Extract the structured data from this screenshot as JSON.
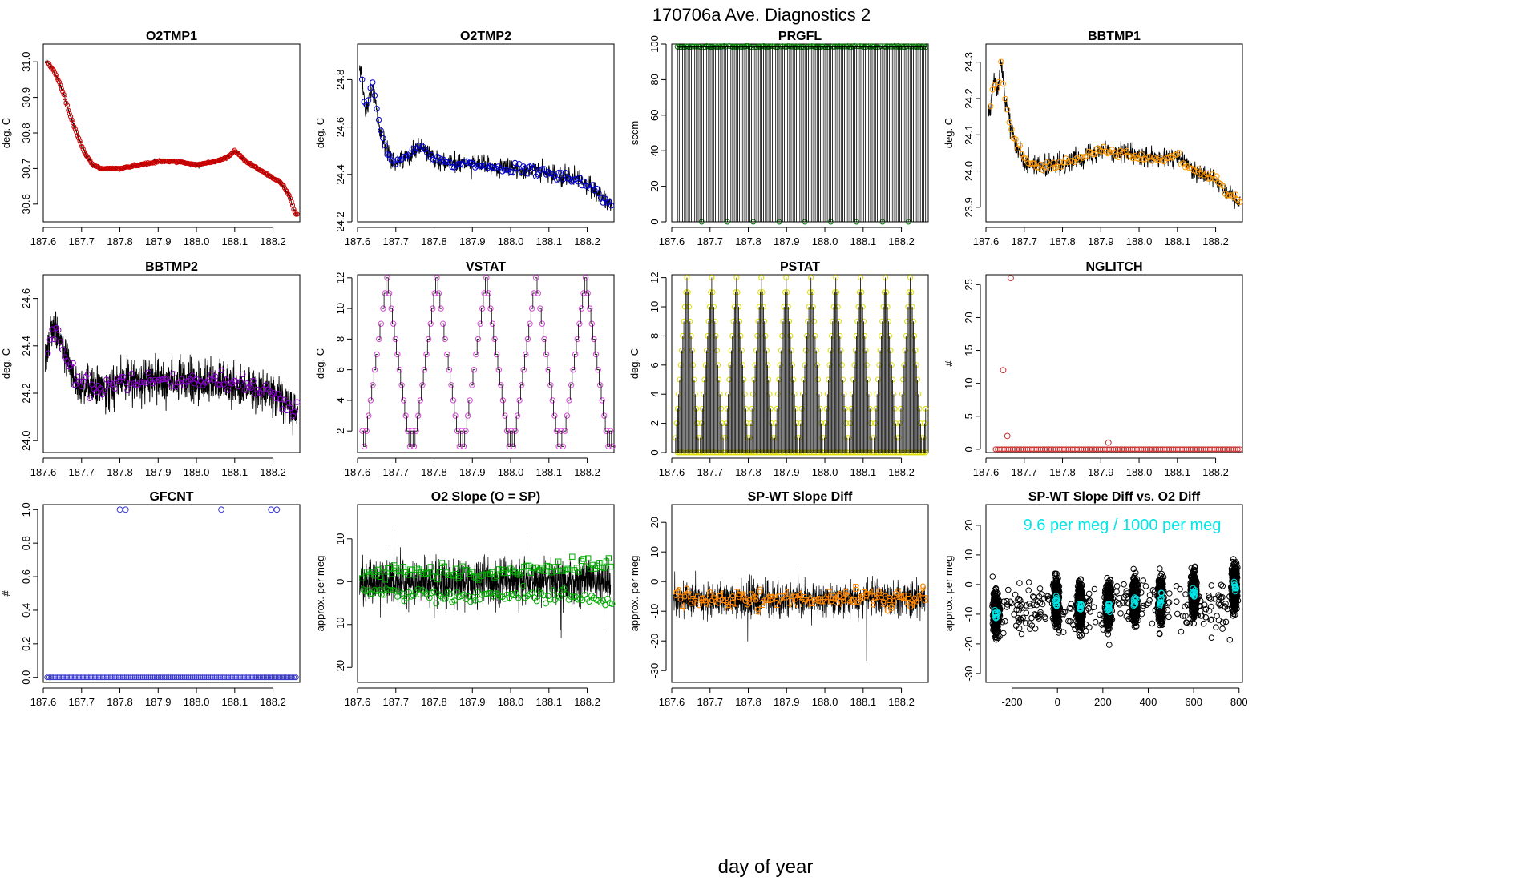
{
  "figure": {
    "title": "170706a   Ave. Diagnostics 2",
    "xlabel": "day of year"
  },
  "chart_data": [
    {
      "id": "o2tmp1",
      "type": "line",
      "title": "O2TMP1",
      "ylabel": "deg. C",
      "xlim": [
        187.6,
        188.27
      ],
      "ylim": [
        30.55,
        31.05
      ],
      "xticks": [
        "187.6",
        "187.7",
        "187.8",
        "187.9",
        "188.0",
        "188.1",
        "188.2"
      ],
      "yticks": [
        "30.6",
        "30.7",
        "30.8",
        "30.9",
        "31.0"
      ],
      "point_color": "#cc0000",
      "marker": "circle",
      "series": [
        {
          "name": "O2TMP1",
          "x": [
            187.61,
            187.63,
            187.65,
            187.67,
            187.69,
            187.71,
            187.73,
            187.75,
            187.78,
            187.8,
            187.85,
            187.9,
            187.95,
            188.0,
            188.05,
            188.08,
            188.1,
            188.13,
            188.16,
            188.19,
            188.22,
            188.24,
            188.26
          ],
          "y": [
            31.0,
            30.97,
            30.92,
            30.85,
            30.79,
            30.74,
            30.71,
            30.7,
            30.7,
            30.7,
            30.71,
            30.72,
            30.72,
            30.71,
            30.72,
            30.73,
            30.75,
            30.72,
            30.7,
            30.68,
            30.66,
            30.63,
            30.57
          ]
        }
      ]
    },
    {
      "id": "o2tmp2",
      "type": "line",
      "title": "O2TMP2",
      "ylabel": "deg. C",
      "xlim": [
        187.6,
        188.27
      ],
      "ylim": [
        24.2,
        24.95
      ],
      "xticks": [
        "187.6",
        "187.7",
        "187.8",
        "187.9",
        "188.0",
        "188.1",
        "188.2"
      ],
      "yticks": [
        "24.2",
        "24.4",
        "24.6",
        "24.8"
      ],
      "point_color": "#0000cc",
      "marker": "circle",
      "series": [
        {
          "name": "O2TMP2",
          "x": [
            187.61,
            187.62,
            187.63,
            187.64,
            187.66,
            187.68,
            187.7,
            187.73,
            187.76,
            187.78,
            187.8,
            187.85,
            187.9,
            187.95,
            188.0,
            188.05,
            188.1,
            188.15,
            188.2,
            188.23,
            188.26
          ],
          "y": [
            24.84,
            24.66,
            24.73,
            24.77,
            24.58,
            24.48,
            24.45,
            24.48,
            24.52,
            24.5,
            24.47,
            24.44,
            24.45,
            24.43,
            24.42,
            24.42,
            24.4,
            24.39,
            24.36,
            24.32,
            24.27
          ]
        }
      ]
    },
    {
      "id": "prgfl",
      "type": "scatter",
      "title": "PRGFL",
      "ylabel": "sccm",
      "xlim": [
        187.6,
        188.27
      ],
      "ylim": [
        0,
        100
      ],
      "xticks": [
        "187.6",
        "187.7",
        "187.8",
        "187.9",
        "188.0",
        "188.1",
        "188.2"
      ],
      "yticks": [
        "0",
        "20",
        "40",
        "60",
        "80",
        "100"
      ],
      "point_color": "#007700",
      "marker": "circle",
      "pattern": {
        "high_value": 98.5,
        "low_value": 0,
        "low_every_days": 0.0645,
        "spike_every": 6
      }
    },
    {
      "id": "bbtmp1",
      "type": "line",
      "title": "BBTMP1",
      "ylabel": "deg. C",
      "xlim": [
        187.6,
        188.27
      ],
      "ylim": [
        23.86,
        24.35
      ],
      "xticks": [
        "187.6",
        "187.7",
        "187.8",
        "187.9",
        "188.0",
        "188.1",
        "188.2"
      ],
      "yticks": [
        "23.9",
        "24.0",
        "24.1",
        "24.2",
        "24.3"
      ],
      "point_color": "#ff9900",
      "marker": "circle",
      "series": [
        {
          "name": "BBTMP1",
          "x": [
            187.61,
            187.62,
            187.63,
            187.64,
            187.65,
            187.67,
            187.7,
            187.75,
            187.8,
            187.85,
            187.9,
            187.95,
            188.0,
            188.05,
            188.1,
            188.15,
            188.2,
            188.23,
            188.26
          ],
          "y": [
            24.16,
            24.25,
            24.22,
            24.3,
            24.2,
            24.1,
            24.03,
            24.01,
            24.02,
            24.04,
            24.06,
            24.05,
            24.04,
            24.03,
            24.04,
            24.0,
            23.98,
            23.94,
            23.92
          ]
        }
      ]
    },
    {
      "id": "bbtmp2",
      "type": "line",
      "title": "BBTMP2",
      "ylabel": "deg. C",
      "xlim": [
        187.6,
        188.27
      ],
      "ylim": [
        23.95,
        24.7
      ],
      "xticks": [
        "187.6",
        "187.7",
        "187.8",
        "187.9",
        "188.0",
        "188.1",
        "188.2"
      ],
      "yticks": [
        "24.0",
        "24.2",
        "24.4",
        "24.6"
      ],
      "point_color": "#8800cc",
      "marker": "circle",
      "series": [
        {
          "name": "BBTMP2",
          "x": [
            187.61,
            187.62,
            187.63,
            187.64,
            187.66,
            187.68,
            187.7,
            187.75,
            187.8,
            187.85,
            187.9,
            187.95,
            188.0,
            188.05,
            188.1,
            188.15,
            188.2,
            188.24,
            188.26
          ],
          "y": [
            24.37,
            24.45,
            24.46,
            24.44,
            24.35,
            24.27,
            24.23,
            24.22,
            24.25,
            24.25,
            24.26,
            24.25,
            24.24,
            24.25,
            24.24,
            24.22,
            24.2,
            24.15,
            24.11
          ]
        }
      ]
    },
    {
      "id": "vstat",
      "type": "line",
      "title": "VSTAT",
      "ylabel": "deg. C",
      "xlim": [
        187.6,
        188.27
      ],
      "ylim": [
        0.6,
        12.2
      ],
      "xticks": [
        "187.6",
        "187.7",
        "187.8",
        "187.9",
        "188.0",
        "188.1",
        "188.2"
      ],
      "yticks": [
        "2",
        "4",
        "6",
        "8",
        "10",
        "12"
      ],
      "point_color": "#dd44dd",
      "marker": "circle",
      "pattern": {
        "start_day": 187.61,
        "step_days": 0.0054,
        "cycle": [
          2,
          1,
          2,
          3,
          4,
          5,
          6,
          7,
          8,
          9,
          10,
          11,
          12,
          11,
          10,
          9,
          8,
          7,
          6,
          5,
          4,
          3,
          2,
          1
        ]
      }
    },
    {
      "id": "pstat",
      "type": "line",
      "title": "PSTAT",
      "ylabel": "deg. C",
      "xlim": [
        187.6,
        188.27
      ],
      "ylim": [
        0,
        12.2
      ],
      "xticks": [
        "187.6",
        "187.7",
        "187.8",
        "187.9",
        "188.0",
        "188.1",
        "188.2"
      ],
      "yticks": [
        "0",
        "2",
        "4",
        "6",
        "8",
        "10",
        "12"
      ],
      "point_color": "#dddd00",
      "marker": "circle",
      "pattern": {
        "start_day": 187.61,
        "step_days": 0.0027,
        "cycle": [
          1,
          2,
          3,
          4,
          5,
          6,
          7,
          8,
          9,
          10,
          11,
          12,
          11,
          10,
          9,
          8,
          7,
          6,
          5,
          4,
          3,
          2,
          1,
          0
        ],
        "zero_every": 2
      }
    },
    {
      "id": "nglitch",
      "type": "scatter",
      "title": "NGLITCH",
      "ylabel": "#",
      "xlim": [
        187.6,
        188.27
      ],
      "ylim": [
        -0.5,
        26.5
      ],
      "xticks": [
        "187.6",
        "187.7",
        "187.8",
        "187.9",
        "188.0",
        "188.1",
        "188.2"
      ],
      "yticks": [
        "0",
        "5",
        "10",
        "15",
        "20",
        "25"
      ],
      "point_color": "#cc3333",
      "marker": "circle",
      "series": [
        {
          "name": "NGLITCH",
          "x": [
            187.645,
            187.656,
            187.665,
            187.92
          ],
          "y": [
            12,
            2,
            26,
            1
          ]
        }
      ],
      "baseline": {
        "value": 0,
        "start": 187.625,
        "end": 188.265,
        "step": 0.0056
      }
    },
    {
      "id": "gfcnt",
      "type": "scatter",
      "title": "GFCNT",
      "ylabel": "#",
      "xlim": [
        187.6,
        188.27
      ],
      "ylim": [
        -0.03,
        1.03
      ],
      "xticks": [
        "187.6",
        "187.7",
        "187.8",
        "187.9",
        "188.0",
        "188.1",
        "188.2"
      ],
      "yticks": [
        "0.0",
        "0.2",
        "0.4",
        "0.6",
        "0.8",
        "1.0"
      ],
      "point_color": "#3333cc",
      "marker": "circle",
      "series": [
        {
          "name": "GFCNT",
          "x": [
            187.8,
            187.815,
            188.065,
            188.195,
            188.21
          ],
          "y": [
            1,
            1,
            1,
            1,
            1
          ]
        }
      ],
      "baseline": {
        "value": 0,
        "start": 187.61,
        "end": 188.265,
        "step": 0.0052
      }
    },
    {
      "id": "o2slope",
      "type": "scatter",
      "title": "O2 Slope (O = SP)",
      "ylabel": "approx. per meg",
      "xlim": [
        187.6,
        188.27
      ],
      "ylim": [
        -23.5,
        18
      ],
      "xticks": [
        "187.6",
        "187.7",
        "187.8",
        "187.9",
        "188.0",
        "188.1",
        "188.2"
      ],
      "yticks": [
        "-20",
        "-10",
        "0",
        "10"
      ],
      "point_color": "#00aa00",
      "series": [
        {
          "name": "SP (squares)",
          "marker": "square",
          "x": [
            187.61,
            187.7,
            187.8,
            187.9,
            188.0,
            188.1,
            188.2,
            188.26
          ],
          "y": [
            2,
            2.5,
            2.5,
            2,
            2.5,
            3,
            4,
            4.5
          ]
        },
        {
          "name": "O (circles)",
          "marker": "circle",
          "x": [
            187.61,
            187.7,
            187.8,
            187.9,
            188.0,
            188.1,
            188.2,
            188.26
          ],
          "y": [
            -1.5,
            -3,
            -3,
            -3.5,
            -3,
            -3.5,
            -4,
            -4.5
          ]
        }
      ]
    },
    {
      "id": "spwtdiff",
      "type": "scatter",
      "title": "SP-WT Slope Diff",
      "ylabel": "approx. per meg",
      "xlim": [
        187.6,
        188.27
      ],
      "ylim": [
        -34,
        26
      ],
      "xticks": [
        "187.6",
        "187.7",
        "187.8",
        "187.9",
        "188.0",
        "188.1",
        "188.2"
      ],
      "yticks": [
        "-30",
        "-20",
        "-10",
        "0",
        "10",
        "20"
      ],
      "point_color": "#ff8800",
      "marker": "label",
      "series": [
        {
          "name": "SP-WT",
          "x": [
            187.61,
            187.7,
            187.8,
            187.9,
            188.0,
            188.1,
            188.2,
            188.26
          ],
          "y": [
            -5,
            -6,
            -5.5,
            -6,
            -6,
            -5.5,
            -6.5,
            -6
          ]
        }
      ],
      "labels": [
        "2",
        "3",
        "7",
        "8",
        "1",
        "4",
        "5",
        "6",
        "9",
        "B",
        "A"
      ]
    },
    {
      "id": "spwtvso2",
      "type": "scatter",
      "title": "SP-WT Slope Diff vs. O2 Diff",
      "ylabel": "approx. per meg",
      "annotation": "9.6 per meg / 1000 per meg",
      "xlim": [
        -315,
        815
      ],
      "ylim": [
        -33,
        27
      ],
      "xticks": [
        "-200",
        "0",
        "200",
        "400",
        "600",
        "800"
      ],
      "yticks": [
        "-30",
        "-20",
        "-10",
        "0",
        "10",
        "20"
      ],
      "point_color": "#000000",
      "highlight_color": "#00e5e5",
      "marker": "circle",
      "clusters": [
        {
          "x": -270,
          "y": -10
        },
        {
          "x": -5,
          "y": -6
        },
        {
          "x": 100,
          "y": -7
        },
        {
          "x": 225,
          "y": -7
        },
        {
          "x": 340,
          "y": -5
        },
        {
          "x": 455,
          "y": -5
        },
        {
          "x": 600,
          "y": -3
        },
        {
          "x": 780,
          "y": -1
        }
      ]
    }
  ]
}
